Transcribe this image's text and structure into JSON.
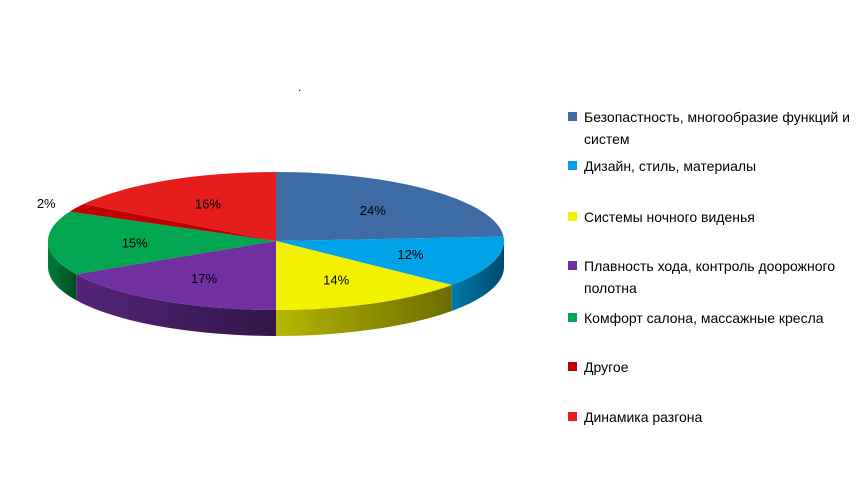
{
  "chart_data": {
    "type": "pie",
    "title": "",
    "stray_mark": ".",
    "slices": [
      {
        "label": "Безопастность, многообразие функций и систем",
        "value": 24,
        "value_label": "24%",
        "color": "#3D6BA3"
      },
      {
        "label": "Дизайн, стиль, материалы",
        "value": 12,
        "value_label": "12%",
        "color": "#00A3E8"
      },
      {
        "label": "Системы ночного виденья",
        "value": 14,
        "value_label": "14%",
        "color": "#F2F200"
      },
      {
        "label": "Плавность хода, контроль доорожного полотна",
        "value": 17,
        "value_label": "17%",
        "color": "#7030A0"
      },
      {
        "label": "Комфорт салона, массажные кресла",
        "value": 15,
        "value_label": "15%",
        "color": "#00A650"
      },
      {
        "label": "Другое",
        "value": 2,
        "value_label": "2%",
        "color": "#C00000"
      },
      {
        "label": "Динамика разгона",
        "value": 16,
        "value_label": "16%",
        "color": "#E51D1D"
      }
    ],
    "legend_position": "right"
  }
}
